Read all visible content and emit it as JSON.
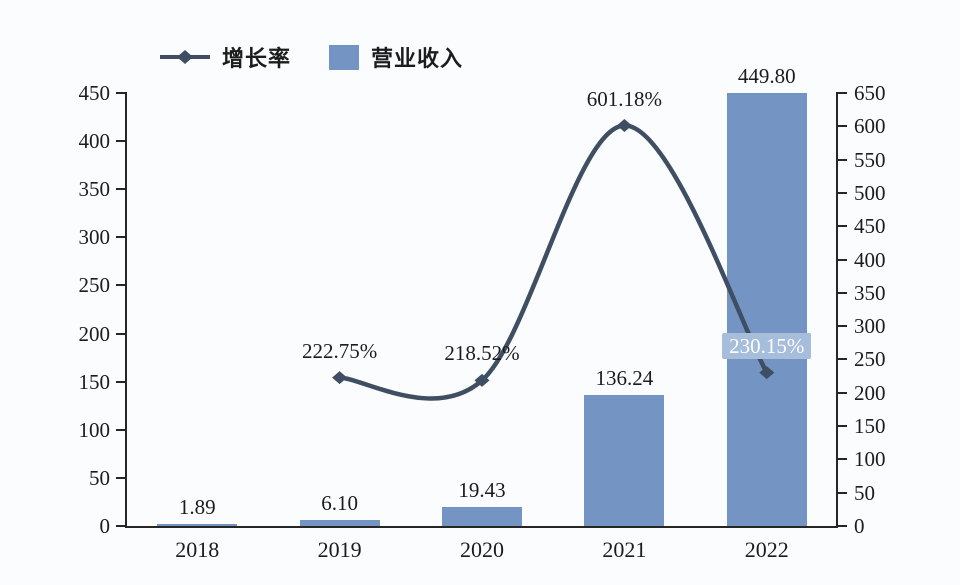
{
  "legend": {
    "items": [
      {
        "label": "增长率",
        "marker": "line-diamond"
      },
      {
        "label": "营业收入",
        "marker": "square"
      }
    ]
  },
  "chart_data": {
    "type": "bar+line combo",
    "categories": [
      "2018",
      "2019",
      "2020",
      "2021",
      "2022"
    ],
    "series": [
      {
        "name": "营业收入",
        "type": "bar",
        "axis": "left",
        "values": [
          1.89,
          6.1,
          19.43,
          136.24,
          449.8
        ],
        "labels": [
          "1.89",
          "6.10",
          "19.43",
          "136.24",
          "449.80"
        ]
      },
      {
        "name": "增长率",
        "type": "line",
        "axis": "right",
        "unit": "%",
        "values": [
          null,
          222.75,
          218.52,
          601.18,
          230.15
        ],
        "labels": [
          null,
          "222.75%",
          "218.52%",
          "601.18%",
          "230.15%"
        ],
        "label_highlight": [
          false,
          false,
          false,
          false,
          true
        ]
      }
    ],
    "left_axis": {
      "min": 0,
      "max": 450,
      "step": 50,
      "tick_labels": [
        "0",
        "50",
        "100",
        "150",
        "200",
        "250",
        "300",
        "350",
        "400",
        "450"
      ]
    },
    "right_axis": {
      "min": 0,
      "max": 650,
      "step": 50,
      "tick_labels": [
        "0",
        "50",
        "100",
        "150",
        "200",
        "250",
        "300",
        "350",
        "400",
        "450",
        "500",
        "550",
        "600",
        "650"
      ]
    },
    "legend_position": "top-left",
    "grid": false,
    "colors": {
      "bar": "#7494c3",
      "line": "#3f4e63",
      "highlight_label_bg": "#a6bddb",
      "highlight_label_text": "#ffffff",
      "axis": "#262626",
      "text": "#1c1c1c",
      "background": "#fbfcfd"
    }
  }
}
